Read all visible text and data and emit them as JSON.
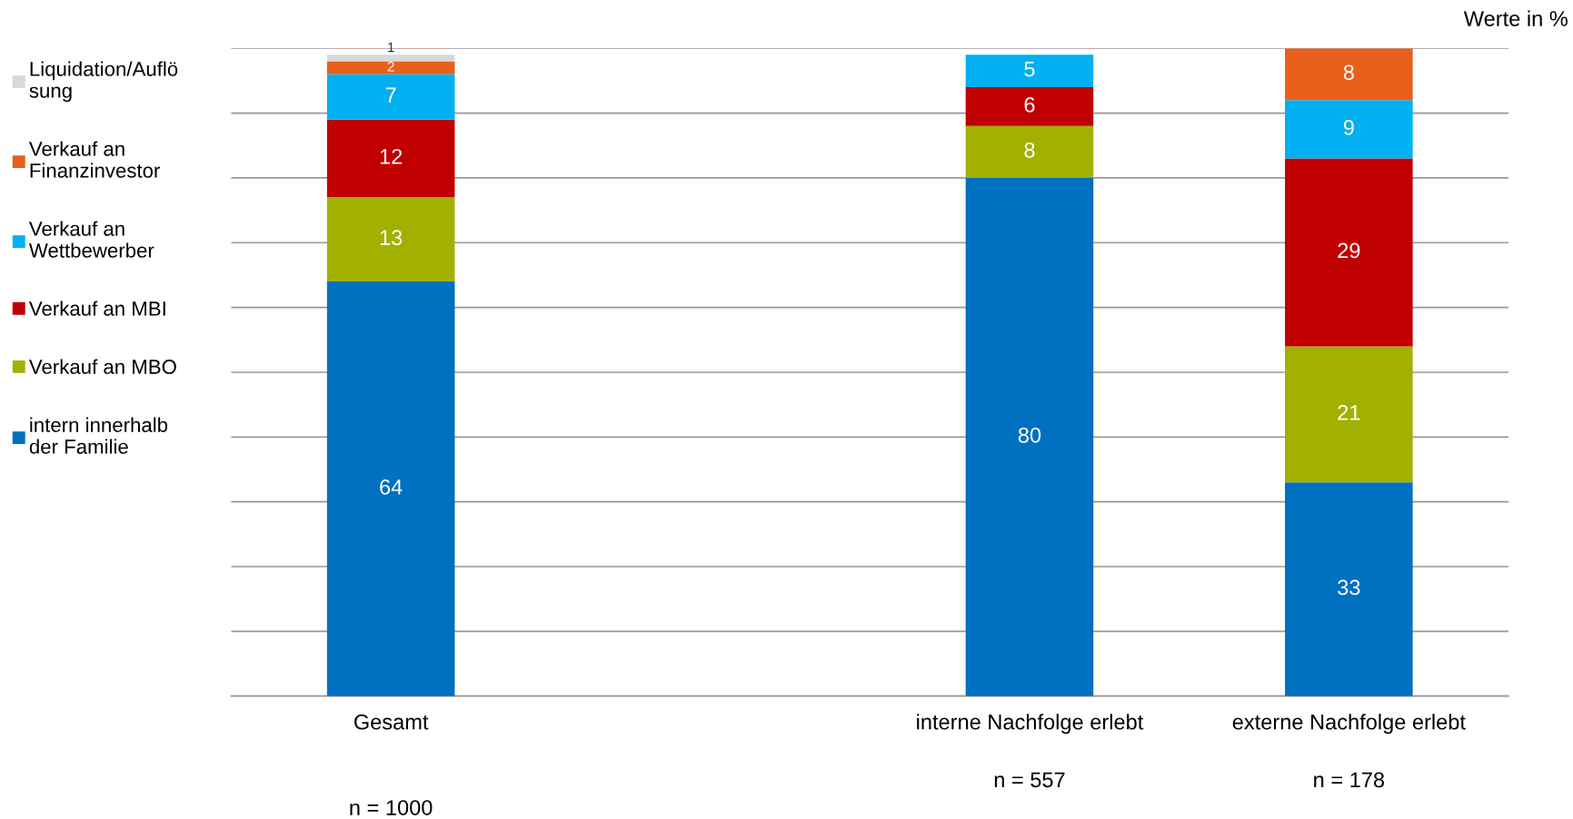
{
  "chart_data": {
    "type": "bar",
    "stacked": true,
    "categories": [
      "Gesamt",
      null,
      "interne Nachfolge erlebt",
      "externe Nachfolge erlebt"
    ],
    "series": [
      {
        "name": "intern innerhalb\nder Familie",
        "color": "#0070c0",
        "values": [
          64,
          null,
          80,
          33
        ]
      },
      {
        "name": "Verkauf an MBO",
        "color": "#a2b000",
        "values": [
          13,
          null,
          8,
          21
        ]
      },
      {
        "name": "Verkauf an MBI",
        "color": "#c00000",
        "values": [
          12,
          null,
          6,
          29
        ]
      },
      {
        "name": "Verkauf an\nWettbewerber",
        "color": "#00b0f0",
        "values": [
          7,
          null,
          5,
          9
        ]
      },
      {
        "name": "Verkauf an\nFinanzinvestor",
        "color": "#e8601c",
        "values": [
          2,
          null,
          null,
          8
        ]
      },
      {
        "name": "Liquidation/Auflö\nsung",
        "color": "#d9d9d9",
        "values": [
          1,
          null,
          null,
          null
        ]
      }
    ],
    "ylim": [
      0,
      100
    ],
    "yticks": [
      {
        "value": 0,
        "label": null
      },
      {
        "value": 10,
        "label": null
      },
      {
        "value": 20,
        "label": null
      },
      {
        "value": 30,
        "label": null
      },
      {
        "value": 40,
        "label": null
      },
      {
        "value": 50,
        "label": null
      },
      {
        "value": 60,
        "label": null
      },
      {
        "value": 70,
        "label": null
      },
      {
        "value": 80,
        "label": null
      },
      {
        "value": 90,
        "label": null
      },
      {
        "value": 100,
        "label": null
      }
    ],
    "tick_labels": "x",
    "grid": "y",
    "legend": "left",
    "marker": "square",
    "data_labels": true,
    "annotations": [
      "Werte in %",
      "n = 1000",
      "n = 557",
      "n = 178"
    ]
  }
}
